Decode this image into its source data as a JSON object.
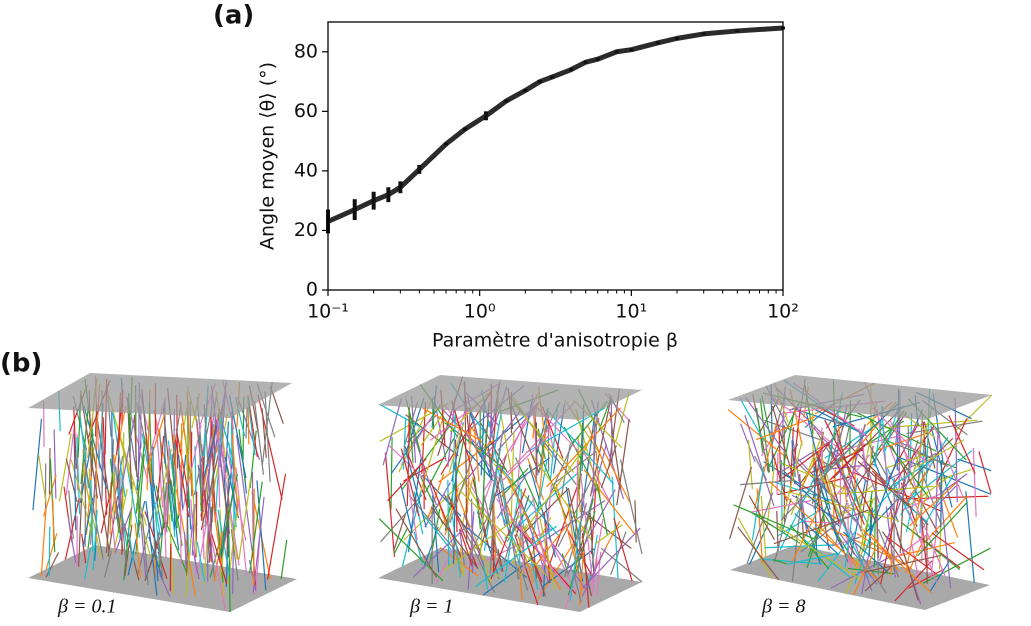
{
  "chart_data": {
    "type": "line",
    "title": "(a)",
    "x_label": "Paramètre d'anisotropie β",
    "y_label": "Angle moyen ⟨θ⟩ (°)",
    "log_x": true,
    "xlim": [
      0.1,
      100
    ],
    "xticks": [
      {
        "value": 0.1,
        "label": "10⁻¹"
      },
      {
        "value": 1,
        "label": "10⁰"
      },
      {
        "value": 10,
        "label": "10¹"
      },
      {
        "value": 100,
        "label": "10²"
      }
    ],
    "ylim": [
      0,
      90
    ],
    "yticks": [
      0,
      20,
      40,
      60,
      80
    ],
    "series": [
      {
        "color": "#2b2b2b",
        "x": [
          0.1,
          0.15,
          0.2,
          0.25,
          0.3,
          0.4,
          0.6,
          0.8,
          1.1,
          1.5,
          2,
          2.5,
          3,
          4,
          5,
          6,
          8,
          10,
          15,
          20,
          30,
          50,
          100
        ],
        "values": [
          23,
          27,
          30,
          32,
          34.5,
          40.5,
          49,
          54,
          58.5,
          63.5,
          67,
          70,
          71.5,
          74,
          76.5,
          77.5,
          80,
          80.7,
          83,
          84.5,
          86,
          87,
          88
        ],
        "errors": [
          4,
          3.5,
          3,
          2.5,
          2,
          1.5,
          0.5,
          0.5,
          1.5,
          0.5,
          0.5,
          0.5,
          0.5,
          0.5,
          0.5,
          0.5,
          0.5,
          0.5,
          0.5,
          0.5,
          0.5,
          0.5,
          0.5
        ]
      }
    ]
  },
  "panel_b": {
    "label": "(b)",
    "panels": [
      {
        "label": "β = 0.1"
      },
      {
        "label": "β = 1"
      },
      {
        "label": "β = 8"
      }
    ]
  }
}
